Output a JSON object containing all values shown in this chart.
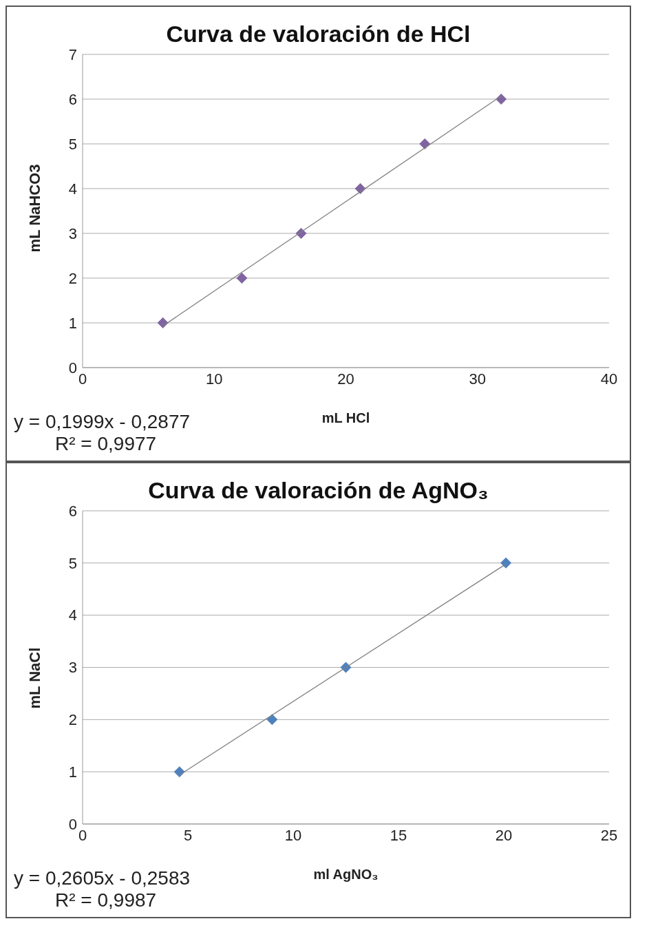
{
  "chart_data": [
    {
      "type": "scatter",
      "title": "Curva de valoración  de HCl",
      "xlabel": "mL HCl",
      "ylabel": "mL NaHCO3",
      "xlim": [
        0,
        40
      ],
      "xticks": [
        0,
        10,
        20,
        30,
        40
      ],
      "ylim": [
        0,
        7
      ],
      "yticks": [
        0,
        1,
        2,
        3,
        4,
        5,
        6,
        7
      ],
      "grid": "y",
      "legend": false,
      "series": [
        {
          "marker": "diamond",
          "color": "#8064a2",
          "x": [
            6.1,
            12.1,
            16.6,
            21.1,
            26.0,
            31.8
          ],
          "values": [
            1,
            2,
            3,
            4,
            5,
            6
          ]
        },
        {
          "type": "line",
          "marker": "none",
          "color": "#7f7f7f",
          "x": [
            6.1,
            31.8
          ],
          "values": [
            0.93,
            6.07
          ]
        }
      ],
      "annotations": [
        "y = 0,1999x - 0,2877",
        "R² = 0,9977"
      ]
    },
    {
      "type": "scatter",
      "title": "Curva de valoración de AgNO₃",
      "xlabel": "ml AgNO₃",
      "ylabel": "mL NaCl",
      "xlim": [
        0,
        25
      ],
      "xticks": [
        0,
        5,
        10,
        15,
        20,
        25
      ],
      "ylim": [
        0,
        6
      ],
      "yticks": [
        0,
        1,
        2,
        3,
        4,
        5,
        6
      ],
      "grid": "y",
      "legend": false,
      "series": [
        {
          "marker": "diamond",
          "color": "#4f81bd",
          "x": [
            4.6,
            9.0,
            12.5,
            20.1
          ],
          "values": [
            1,
            2,
            3,
            5
          ]
        },
        {
          "type": "line",
          "marker": "none",
          "color": "#7f7f7f",
          "x": [
            4.6,
            20.1
          ],
          "values": [
            0.94,
            4.98
          ]
        }
      ],
      "annotations": [
        "y = 0,2605x - 0,2583",
        "R² = 0,9987"
      ]
    }
  ]
}
